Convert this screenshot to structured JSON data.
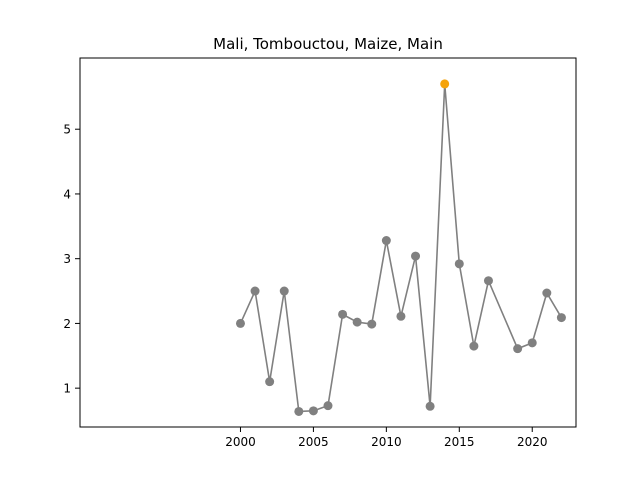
{
  "chart_data": {
    "type": "line",
    "title": "Mali, Tombouctou, Maize, Main",
    "xlabel": "",
    "ylabel": "",
    "xlim": [
      1989,
      2023
    ],
    "ylim": [
      0.4,
      6.1
    ],
    "x_ticks": [
      2000,
      2005,
      2010,
      2015,
      2020
    ],
    "y_ticks": [
      1,
      2,
      3,
      4,
      5
    ],
    "grid": false,
    "line_color": "#808080",
    "point_color": "#808080",
    "highlight_color": "#f5a30a",
    "series": [
      {
        "x": [
          2000,
          2001,
          2002,
          2003,
          2004,
          2005,
          2006,
          2007,
          2008,
          2009,
          2010,
          2011,
          2012,
          2013,
          2014,
          2015,
          2016,
          2017,
          2019,
          2020,
          2021,
          2022
        ],
        "values": [
          2.0,
          2.5,
          1.1,
          2.5,
          0.64,
          0.65,
          0.73,
          2.14,
          2.02,
          1.99,
          3.28,
          2.11,
          3.04,
          0.72,
          5.7,
          2.92,
          1.65,
          2.66,
          1.61,
          1.7,
          2.47,
          2.09
        ]
      }
    ],
    "highlight_point": {
      "x": 2014,
      "value": 5.7
    }
  }
}
